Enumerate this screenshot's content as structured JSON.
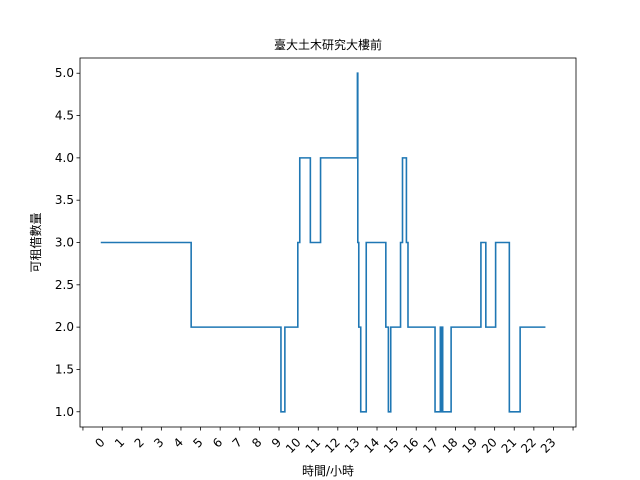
{
  "chart_data": {
    "type": "line",
    "title": "臺大土木研究大樓前",
    "xlabel": "時間/小時",
    "ylabel": "可租借數量",
    "xlim": [
      -1.15,
      24.15
    ],
    "ylim": [
      0.82,
      5.18
    ],
    "xticks": [
      -1,
      0,
      1,
      2,
      3,
      4,
      5,
      6,
      7,
      8,
      9,
      10,
      11,
      12,
      13,
      14,
      15,
      16,
      17,
      18,
      19,
      20,
      21,
      22,
      23,
      24
    ],
    "xtick_labels": [
      "",
      "0",
      "1",
      "2",
      "3",
      "4",
      "5",
      "6",
      "7",
      "8",
      "9",
      "10",
      "11",
      "12",
      "13",
      "14",
      "15",
      "16",
      "17",
      "18",
      "19",
      "20",
      "21",
      "22",
      "23",
      ""
    ],
    "yticks": [
      1.0,
      1.5,
      2.0,
      2.5,
      3.0,
      3.5,
      4.0,
      4.5,
      5.0
    ],
    "ytick_labels": [
      "1.0",
      "1.5",
      "2.0",
      "2.5",
      "3.0",
      "3.5",
      "4.0",
      "4.5",
      "5.0"
    ],
    "series": [
      {
        "name": "可租借數量",
        "color": "#1f77b4",
        "x": [
          -0.05,
          4.52,
          4.52,
          9.1,
          9.1,
          9.3,
          9.3,
          9.96,
          9.96,
          10.06,
          10.06,
          10.6,
          10.6,
          11.12,
          11.12,
          13.0,
          13.0,
          13.02,
          13.02,
          13.07,
          13.07,
          13.17,
          13.17,
          13.45,
          13.45,
          14.45,
          14.45,
          14.58,
          14.58,
          14.7,
          14.7,
          15.2,
          15.2,
          15.3,
          15.3,
          15.5,
          15.5,
          15.58,
          15.58,
          16.96,
          16.96,
          17.23,
          17.23,
          17.27,
          17.27,
          17.33,
          17.33,
          17.35,
          17.35,
          17.78,
          17.78,
          19.3,
          19.3,
          19.55,
          19.55,
          20.05,
          20.05,
          20.75,
          20.75,
          21.3,
          21.3,
          22.5,
          22.5,
          22.55
        ],
        "y": [
          3,
          3,
          2,
          2,
          1,
          1,
          2,
          2,
          3,
          3,
          4,
          4,
          3,
          3,
          4,
          4,
          5,
          5,
          3,
          3,
          2,
          2,
          1,
          1,
          3,
          3,
          2,
          2,
          1,
          1,
          2,
          2,
          3,
          3,
          4,
          4,
          3,
          3,
          2,
          2,
          1,
          1,
          2,
          2,
          1,
          1,
          2,
          2,
          1,
          1,
          2,
          2,
          3,
          3,
          2,
          2,
          3,
          3,
          1,
          1,
          2,
          2,
          2,
          2
        ]
      }
    ]
  }
}
